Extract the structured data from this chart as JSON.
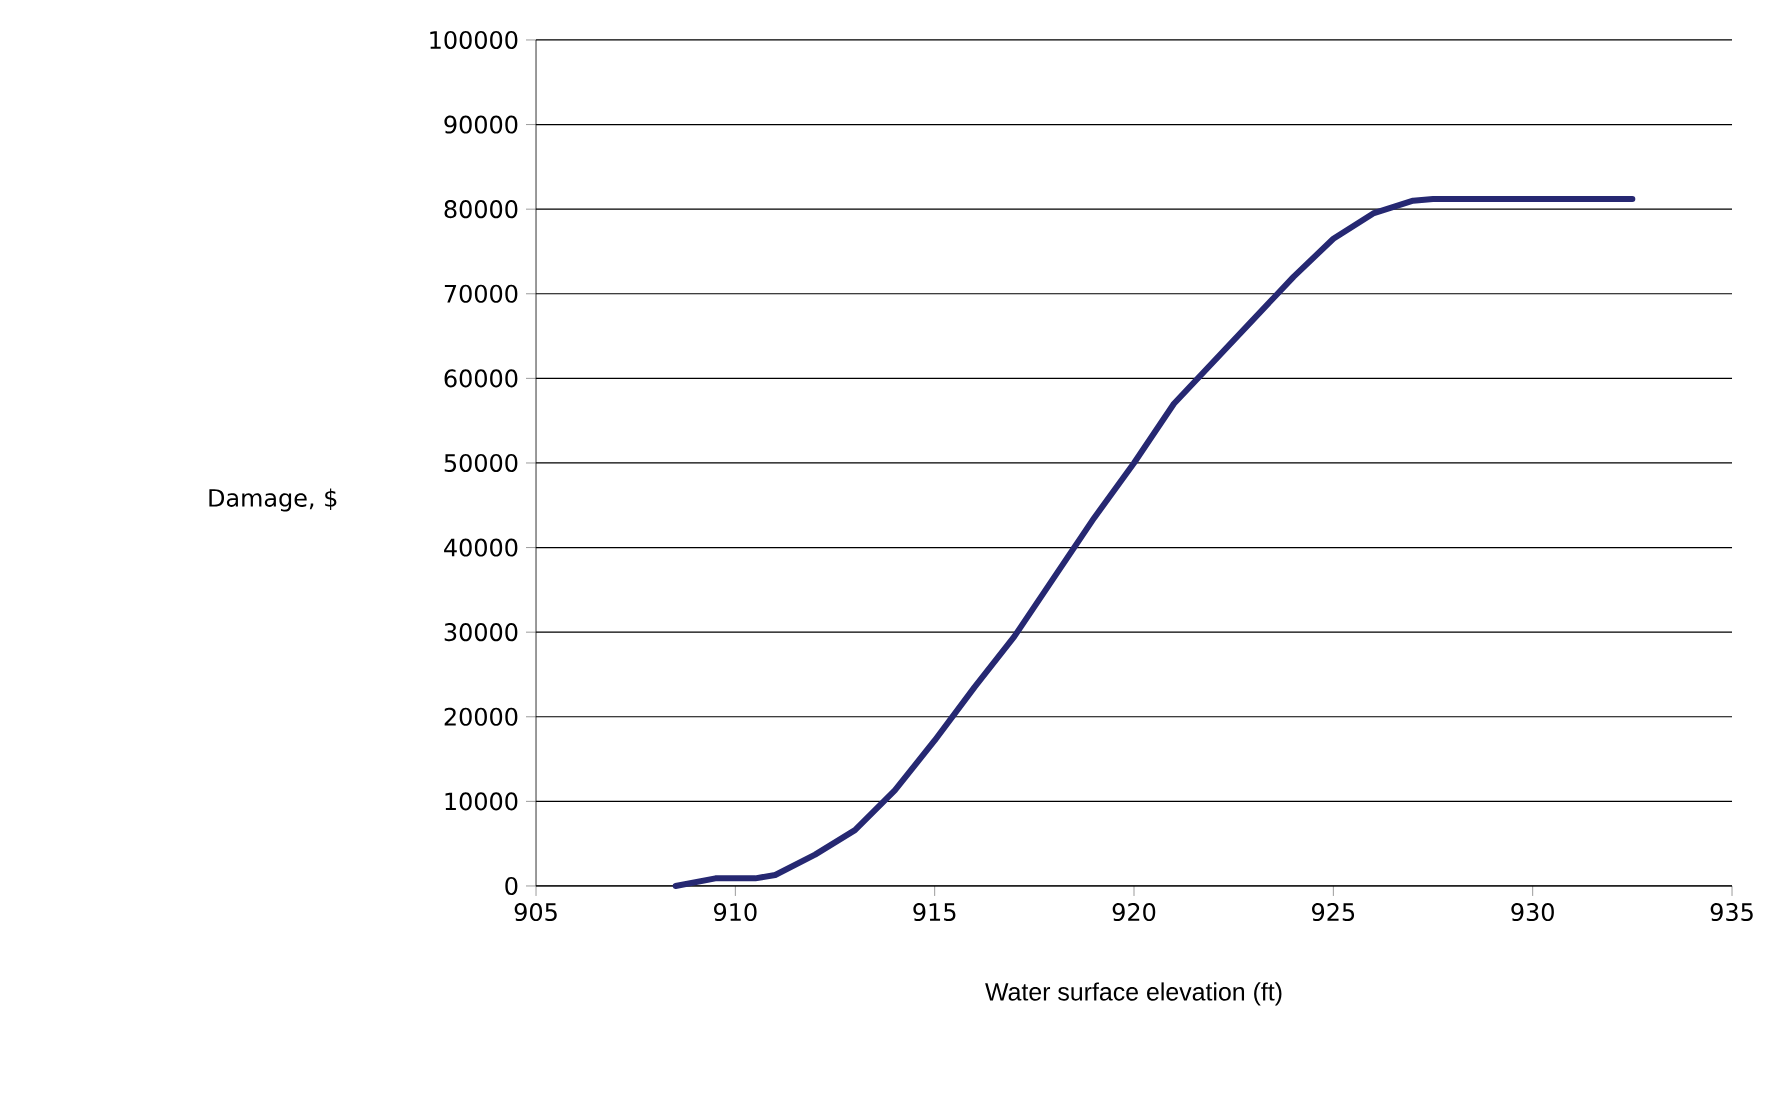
{
  "chart_data": {
    "type": "line",
    "xlabel": "Water surface elevation (ft)",
    "ylabel": "Damage, $",
    "x": [
      908.5,
      909.5,
      910.5,
      911,
      912,
      913,
      914,
      915,
      916,
      917,
      918,
      919,
      920,
      921,
      922,
      923,
      924,
      925,
      926,
      927,
      927.5,
      932.5
    ],
    "series": [
      {
        "color": "#262872",
        "values": [
          0,
          900,
          900,
          1300,
          3700,
          6600,
          11300,
          17200,
          23500,
          29500,
          36500,
          43500,
          50000,
          57000,
          62000,
          67000,
          72000,
          76500,
          79500,
          81000,
          81200,
          81200
        ]
      }
    ],
    "xlim": [
      905,
      935
    ],
    "xticks": [
      905,
      910,
      915,
      920,
      925,
      930,
      935
    ],
    "ylim": [
      0,
      100000
    ],
    "yticks": [
      0,
      10000,
      20000,
      30000,
      40000,
      50000,
      60000,
      70000,
      80000,
      90000,
      100000
    ],
    "grid": "y",
    "marker": "none",
    "line_style": "solid"
  }
}
